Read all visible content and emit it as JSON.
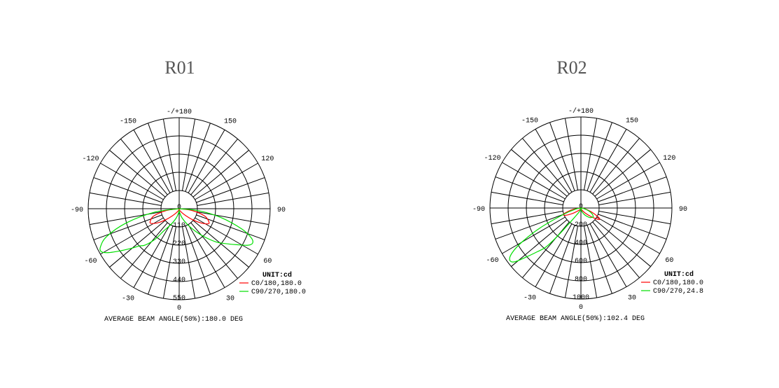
{
  "chart_data": [
    {
      "type": "polar",
      "title": "R01",
      "unit_label": "UNIT:cd",
      "angle_labels": [
        {
          "angle": 180,
          "text": "-/+180"
        },
        {
          "angle": 150,
          "text": "150"
        },
        {
          "angle": -150,
          "text": "-150"
        },
        {
          "angle": 120,
          "text": "120"
        },
        {
          "angle": -120,
          "text": "-120"
        },
        {
          "angle": 90,
          "text": "90"
        },
        {
          "angle": -90,
          "text": "-90"
        },
        {
          "angle": 60,
          "text": "60"
        },
        {
          "angle": -60,
          "text": "-60"
        },
        {
          "angle": 30,
          "text": "30"
        },
        {
          "angle": -30,
          "text": "-30"
        },
        {
          "angle": 0,
          "text": "0"
        }
      ],
      "radial_ticks": [
        "0",
        "110",
        "220",
        "330",
        "440",
        "550"
      ],
      "rmax": 550,
      "grid": true,
      "legend_placement": "bottom-right",
      "series": [
        {
          "name": "C0/180,180.0",
          "color": "#ff0000",
          "points": [
            [
              -90,
              0
            ],
            [
              -82,
              80
            ],
            [
              -74,
              160
            ],
            [
              -66,
              192
            ],
            [
              -62,
              190
            ],
            [
              -56,
              150
            ],
            [
              -50,
              100
            ],
            [
              -44,
              60
            ],
            [
              -35,
              30
            ],
            [
              -20,
              12
            ],
            [
              0,
              5
            ],
            [
              20,
              12
            ],
            [
              35,
              30
            ],
            [
              44,
              60
            ],
            [
              50,
              100
            ],
            [
              56,
              150
            ],
            [
              62,
              195
            ],
            [
              66,
              197
            ],
            [
              74,
              160
            ],
            [
              82,
              80
            ],
            [
              90,
              0
            ]
          ]
        },
        {
          "name": "C90/270,180.0",
          "color": "#00e000",
          "points": [
            [
              -90,
              0
            ],
            [
              -82,
              150
            ],
            [
              -75,
              330
            ],
            [
              -69,
              470
            ],
            [
              -64,
              530
            ],
            [
              -61,
              537
            ],
            [
              -58,
              500
            ],
            [
              -54,
              430
            ],
            [
              -50,
              370
            ],
            [
              -47,
              330
            ],
            [
              -43,
              300
            ],
            [
              -38,
              230
            ],
            [
              -35,
              165
            ],
            [
              -28,
              110
            ],
            [
              -18,
              60
            ],
            [
              -8,
              25
            ],
            [
              0,
              10
            ],
            [
              8,
              25
            ],
            [
              18,
              60
            ],
            [
              28,
              110
            ],
            [
              36,
              170
            ],
            [
              42,
              230
            ],
            [
              48,
              300
            ],
            [
              53,
              350
            ],
            [
              58,
              410
            ],
            [
              62,
              470
            ],
            [
              65,
              490
            ],
            [
              68,
              470
            ],
            [
              72,
              400
            ],
            [
              78,
              260
            ],
            [
              84,
              120
            ],
            [
              90,
              0
            ]
          ]
        }
      ],
      "footer": "AVERAGE BEAM ANGLE(50%):180.0 DEG"
    },
    {
      "type": "polar",
      "title": "R02",
      "unit_label": "UNIT:cd",
      "angle_labels": [
        {
          "angle": 180,
          "text": "-/+180"
        },
        {
          "angle": 150,
          "text": "150"
        },
        {
          "angle": -150,
          "text": "-150"
        },
        {
          "angle": 120,
          "text": "120"
        },
        {
          "angle": -120,
          "text": "-120"
        },
        {
          "angle": 90,
          "text": "90"
        },
        {
          "angle": -90,
          "text": "-90"
        },
        {
          "angle": 60,
          "text": "60"
        },
        {
          "angle": -60,
          "text": "-60"
        },
        {
          "angle": 30,
          "text": "30"
        },
        {
          "angle": -30,
          "text": "-30"
        },
        {
          "angle": 0,
          "text": "0"
        }
      ],
      "radial_ticks": [
        "0",
        "200",
        "400",
        "600",
        "800",
        "1000"
      ],
      "rmax": 1000,
      "grid": true,
      "legend_placement": "bottom-right",
      "series": [
        {
          "name": "C0/180,180.0",
          "color": "#ff0000",
          "points": [
            [
              -90,
              0
            ],
            [
              -80,
              90
            ],
            [
              -72,
              190
            ],
            [
              -68,
              207
            ],
            [
              -63,
              170
            ],
            [
              -57,
              110
            ],
            [
              -50,
              60
            ],
            [
              -35,
              25
            ],
            [
              0,
              5
            ],
            [
              25,
              25
            ],
            [
              40,
              70
            ],
            [
              50,
              150
            ],
            [
              56,
              220
            ],
            [
              59,
              241
            ],
            [
              63,
              210
            ],
            [
              70,
              120
            ],
            [
              80,
              40
            ],
            [
              90,
              0
            ]
          ]
        },
        {
          "name": "C90/270,24.8",
          "color": "#00e000",
          "points": [
            [
              -90,
              0
            ],
            [
              -78,
              60
            ],
            [
              -70,
              200
            ],
            [
              -64,
              500
            ],
            [
              -60,
              750
            ],
            [
              -57,
              900
            ],
            [
              -54,
              968
            ],
            [
              -51,
              940
            ],
            [
              -48,
              800
            ],
            [
              -45,
              680
            ],
            [
              -42,
              580
            ],
            [
              -40,
              420
            ],
            [
              -38,
              250
            ],
            [
              -34,
              120
            ],
            [
              -25,
              50
            ],
            [
              -12,
              15
            ],
            [
              0,
              5
            ],
            [
              15,
              40
            ],
            [
              30,
              90
            ],
            [
              42,
              140
            ],
            [
              50,
              160
            ],
            [
              55,
              165
            ],
            [
              62,
              140
            ],
            [
              70,
              90
            ],
            [
              80,
              30
            ],
            [
              90,
              0
            ]
          ]
        }
      ],
      "footer": "AVERAGE BEAM ANGLE(50%):102.4 DEG"
    }
  ]
}
